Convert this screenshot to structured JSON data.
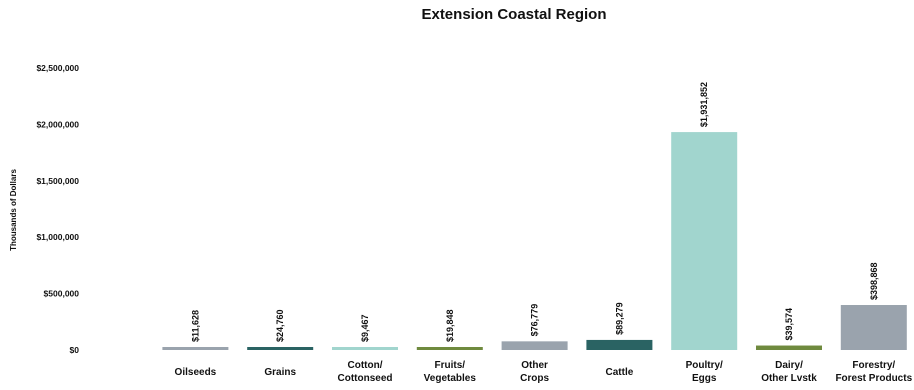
{
  "chart_data": {
    "type": "bar",
    "title": "Extension Coastal Region",
    "ylabel": "Thousands of Dollars",
    "ylim": [
      0,
      2500000
    ],
    "yticks": [
      "$0",
      "$500,000",
      "$1,000,000",
      "$1,500,000",
      "$2,000,000",
      "$2,500,000"
    ],
    "grid": false,
    "categories": [
      [
        "Oilseeds"
      ],
      [
        "Grains"
      ],
      [
        "Cotton/",
        "Cottonseed"
      ],
      [
        "Fruits/",
        "Vegetables"
      ],
      [
        "Other",
        "Crops"
      ],
      [
        "Cattle"
      ],
      [
        "Poultry/",
        "Eggs"
      ],
      [
        "Dairy/",
        "Other Lvstk"
      ],
      [
        "Forestry/",
        "Forest Products"
      ]
    ],
    "values": [
      11628,
      24760,
      9467,
      19848,
      76779,
      89279,
      1931852,
      39574,
      398868
    ],
    "data_labels": [
      "$11,628",
      "$24,760",
      "$9,467",
      "$19,848",
      "$76,779",
      "$89,279",
      "$1,931,852",
      "$39,574",
      "$398,868"
    ],
    "colors": [
      "#9aa3ad",
      "#2a6363",
      "#a1d5ce",
      "#6f8a3e",
      "#9aa3ad",
      "#2a6363",
      "#a1d5ce",
      "#6f8a3e",
      "#9aa3ad"
    ]
  }
}
